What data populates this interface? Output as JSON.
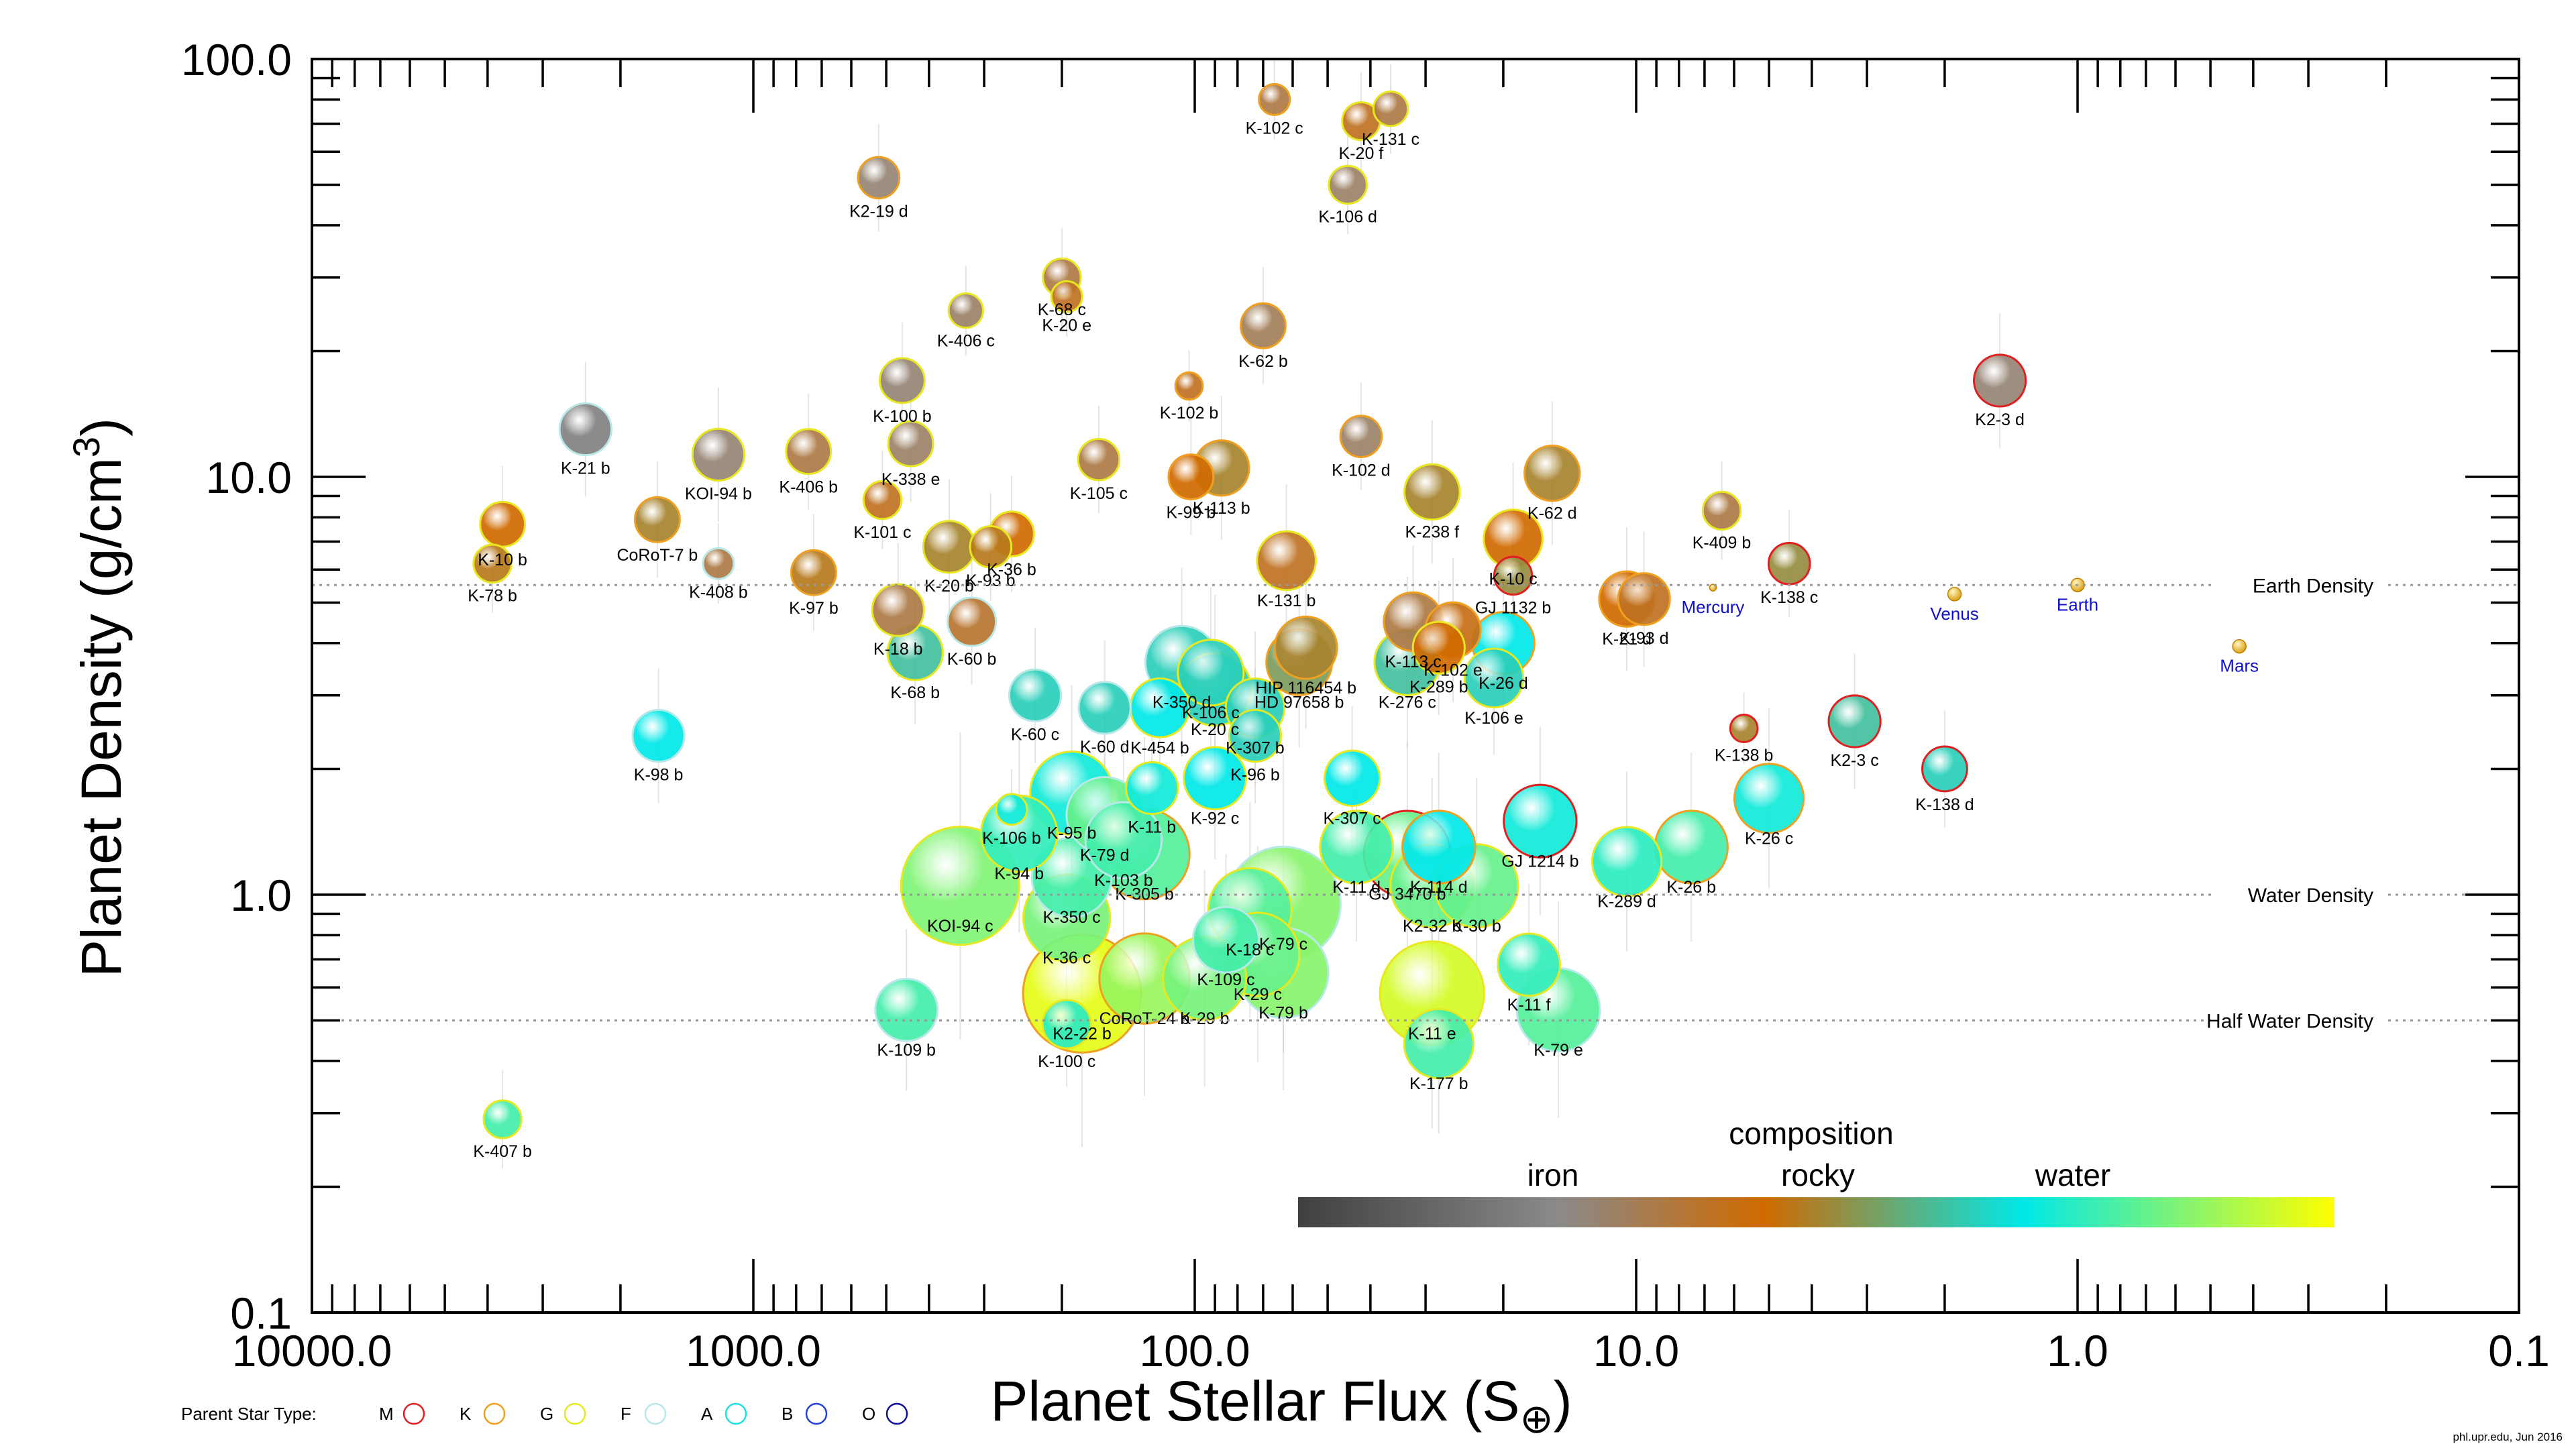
{
  "chart_data": {
    "type": "scatter",
    "xlabel": "Planet Stellar Flux (S",
    "xlabel_sub": "⊕",
    "xlabel_close": ")",
    "ylabel": "Planet Density (g/cm",
    "ylabel_sup": "3",
    "ylabel_close": ")",
    "x_scale": "log",
    "x_reversed": true,
    "xlim": [
      10000,
      0.1
    ],
    "y_scale": "log",
    "ylim": [
      0.1,
      100
    ],
    "x_ticks": [
      {
        "value": 10000,
        "label": "10000.0"
      },
      {
        "value": 1000,
        "label": "1000.0"
      },
      {
        "value": 100,
        "label": "100.0"
      },
      {
        "value": 10,
        "label": "10.0"
      },
      {
        "value": 1,
        "label": "1.0"
      },
      {
        "value": 0.1,
        "label": "0.1"
      }
    ],
    "y_ticks": [
      {
        "value": 100,
        "label": "100.0"
      },
      {
        "value": 10,
        "label": "10.0"
      },
      {
        "value": 1,
        "label": "1.0"
      },
      {
        "value": 0.1,
        "label": "0.1"
      }
    ],
    "reference_lines": [
      {
        "label": "Earth Density",
        "y": 5.51
      },
      {
        "label": "Water Density",
        "y": 1.0
      },
      {
        "label": "Half Water Density",
        "y": 0.5
      }
    ],
    "colorbar": {
      "title": "composition",
      "labels": [
        "iron",
        "rocky",
        "water"
      ],
      "colors": [
        "#404040",
        "#8a8a8a",
        "#d06a00",
        "#00e8e8",
        "#ffff00"
      ]
    },
    "legend": {
      "title": "Parent Star Type:",
      "placement": "bottom-left",
      "items": [
        {
          "label": "M",
          "color": "#e02020"
        },
        {
          "label": "K",
          "color": "#f0a020"
        },
        {
          "label": "G",
          "color": "#e8e820"
        },
        {
          "label": "F",
          "color": "#b8e8e8"
        },
        {
          "label": "A",
          "color": "#20e0e0"
        },
        {
          "label": "B",
          "color": "#2040e0"
        },
        {
          "label": "O",
          "color": "#1010a0"
        }
      ]
    },
    "solar_system": [
      {
        "name": "Mercury",
        "flux": 6.7,
        "density": 5.43
      },
      {
        "name": "Venus",
        "flux": 1.9,
        "density": 5.24
      },
      {
        "name": "Earth",
        "flux": 1.0,
        "density": 5.51
      },
      {
        "name": "Mars",
        "flux": 0.43,
        "density": 3.93
      }
    ],
    "planets": [
      {
        "name": "K-102 c",
        "flux": 66,
        "density": 80,
        "size": 0.25,
        "comp": 0.35,
        "star": "K"
      },
      {
        "name": "K-131 c",
        "flux": 36,
        "density": 76,
        "size": 0.3,
        "comp": 0.35,
        "star": "G"
      },
      {
        "name": "K-20 f",
        "flux": 42,
        "density": 71,
        "size": 0.35,
        "comp": 0.4,
        "star": "G"
      },
      {
        "name": "K2-19 d",
        "flux": 520,
        "density": 52,
        "size": 0.4,
        "comp": 0.28,
        "star": "K"
      },
      {
        "name": "K-106 d",
        "flux": 45,
        "density": 50,
        "size": 0.35,
        "comp": 0.3,
        "star": "G"
      },
      {
        "name": "K-68 c",
        "flux": 200,
        "density": 30,
        "size": 0.35,
        "comp": 0.35,
        "star": "G"
      },
      {
        "name": "K-20 e",
        "flux": 195,
        "density": 27,
        "size": 0.25,
        "comp": 0.4,
        "star": "G"
      },
      {
        "name": "K-406 c",
        "flux": 330,
        "density": 25,
        "size": 0.3,
        "comp": 0.3,
        "star": "G"
      },
      {
        "name": "K-62 b",
        "flux": 70,
        "density": 23,
        "size": 0.45,
        "comp": 0.32,
        "star": "K"
      },
      {
        "name": "K-100 b",
        "flux": 460,
        "density": 17,
        "size": 0.45,
        "comp": 0.28,
        "star": "G"
      },
      {
        "name": "K-102 b",
        "flux": 103,
        "density": 16.5,
        "size": 0.2,
        "comp": 0.4,
        "star": "K"
      },
      {
        "name": "K2-3 d",
        "flux": 1.5,
        "density": 17,
        "size": 0.55,
        "comp": 0.28,
        "star": "M"
      },
      {
        "name": "K-21 b",
        "flux": 2400,
        "density": 13,
        "size": 0.55,
        "comp": 0.22,
        "star": "F"
      },
      {
        "name": "K-102 d",
        "flux": 42,
        "density": 12.5,
        "size": 0.4,
        "comp": 0.3,
        "star": "K"
      },
      {
        "name": "K-338 e",
        "flux": 440,
        "density": 12,
        "size": 0.45,
        "comp": 0.3,
        "star": "G"
      },
      {
        "name": "KOI-94 b",
        "flux": 1200,
        "density": 11.3,
        "size": 0.55,
        "comp": 0.28,
        "star": "G"
      },
      {
        "name": "K-406 b",
        "flux": 750,
        "density": 11.5,
        "size": 0.45,
        "comp": 0.35,
        "star": "G"
      },
      {
        "name": "K-105 c",
        "flux": 165,
        "density": 11,
        "size": 0.4,
        "comp": 0.35,
        "star": "G"
      },
      {
        "name": "K-113 b",
        "flux": 87,
        "density": 10.5,
        "size": 0.6,
        "comp": 0.5,
        "star": "K"
      },
      {
        "name": "K-99 b",
        "flux": 102,
        "density": 10,
        "size": 0.45,
        "comp": 0.45,
        "star": "K"
      },
      {
        "name": "K-62 d",
        "flux": 15.5,
        "density": 10.2,
        "size": 0.6,
        "comp": 0.5,
        "star": "K"
      },
      {
        "name": "K-238 f",
        "flux": 29,
        "density": 9.2,
        "size": 0.6,
        "comp": 0.5,
        "star": "G"
      },
      {
        "name": "K-409 b",
        "flux": 6.4,
        "density": 8.3,
        "size": 0.35,
        "comp": 0.35,
        "star": "G"
      },
      {
        "name": "K-101 c",
        "flux": 510,
        "density": 8.8,
        "size": 0.35,
        "comp": 0.4,
        "star": "G"
      },
      {
        "name": "K-10 b",
        "flux": 3700,
        "density": 7.7,
        "size": 0.45,
        "comp": 0.45,
        "star": "G"
      },
      {
        "name": "CoRoT-7 b",
        "flux": 1650,
        "density": 7.9,
        "size": 0.45,
        "comp": 0.5,
        "star": "K"
      },
      {
        "name": "K-36 b",
        "flux": 260,
        "density": 7.3,
        "size": 0.45,
        "comp": 0.45,
        "star": "G"
      },
      {
        "name": "K-20 b",
        "flux": 360,
        "density": 6.8,
        "size": 0.55,
        "comp": 0.5,
        "star": "G"
      },
      {
        "name": "K-93 b",
        "flux": 290,
        "density": 6.8,
        "size": 0.4,
        "comp": 0.48,
        "star": "G"
      },
      {
        "name": "K-10 c",
        "flux": 19,
        "density": 7.1,
        "size": 0.65,
        "comp": 0.45,
        "star": "G"
      },
      {
        "name": "K-131 b",
        "flux": 62,
        "density": 6.3,
        "size": 0.65,
        "comp": 0.4,
        "star": "G"
      },
      {
        "name": "K-78 b",
        "flux": 3900,
        "density": 6.2,
        "size": 0.35,
        "comp": 0.48,
        "star": "G"
      },
      {
        "name": "K-408 b",
        "flux": 1200,
        "density": 6.2,
        "size": 0.25,
        "comp": 0.35,
        "star": "F"
      },
      {
        "name": "K-97 b",
        "flux": 730,
        "density": 5.9,
        "size": 0.45,
        "comp": 0.48,
        "star": "K"
      },
      {
        "name": "K-138 c",
        "flux": 4.5,
        "density": 6.2,
        "size": 0.4,
        "comp": 0.52,
        "star": "M"
      },
      {
        "name": "GJ 1132 b",
        "flux": 19,
        "density": 5.8,
        "size": 0.35,
        "comp": 0.52,
        "star": "M"
      },
      {
        "name": "K-21 d",
        "flux": 10.5,
        "density": 5.1,
        "size": 0.6,
        "comp": 0.45,
        "star": "K"
      },
      {
        "name": "K-93 d",
        "flux": 9.6,
        "density": 5.1,
        "size": 0.55,
        "comp": 0.4,
        "star": "K"
      },
      {
        "name": "K-18 b",
        "flux": 470,
        "density": 4.8,
        "size": 0.55,
        "comp": 0.35,
        "star": "G"
      },
      {
        "name": "K-60 b",
        "flux": 320,
        "density": 4.5,
        "size": 0.5,
        "comp": 0.38,
        "star": "F"
      },
      {
        "name": "K-113 c",
        "flux": 32,
        "density": 4.5,
        "size": 0.65,
        "comp": 0.35,
        "star": "K"
      },
      {
        "name": "K-102 e",
        "flux": 26,
        "density": 4.3,
        "size": 0.6,
        "comp": 0.42,
        "star": "K"
      },
      {
        "name": "K-289 b",
        "flux": 28,
        "density": 3.9,
        "size": 0.55,
        "comp": 0.45,
        "star": "G"
      },
      {
        "name": "K-68 b",
        "flux": 430,
        "density": 3.8,
        "size": 0.6,
        "comp": 0.62,
        "star": "G"
      },
      {
        "name": "K-276 c",
        "flux": 33,
        "density": 3.6,
        "size": 0.75,
        "comp": 0.62,
        "star": "G"
      },
      {
        "name": "K-106 e",
        "flux": 21,
        "density": 3.3,
        "size": 0.65,
        "comp": 0.65,
        "star": "G"
      },
      {
        "name": "K-26 d",
        "flux": 20,
        "density": 4,
        "size": 0.7,
        "comp": 0.7,
        "star": "K"
      },
      {
        "name": "HIP 116454 b",
        "flux": 56,
        "density": 3.9,
        "size": 0.7,
        "comp": 0.5,
        "star": "K"
      },
      {
        "name": "HD 97658 b",
        "flux": 58,
        "density": 3.6,
        "size": 0.75,
        "comp": 0.55,
        "star": "K"
      },
      {
        "name": "K-350 d",
        "flux": 107,
        "density": 3.6,
        "size": 0.85,
        "comp": 0.65,
        "star": "F"
      },
      {
        "name": "K-106 c",
        "flux": 92,
        "density": 3.4,
        "size": 0.75,
        "comp": 0.65,
        "star": "G"
      },
      {
        "name": "K-20 c",
        "flux": 90,
        "density": 3.1,
        "size": 0.85,
        "comp": 0.65,
        "star": "G"
      },
      {
        "name": "K-60 c",
        "flux": 230,
        "density": 3.0,
        "size": 0.55,
        "comp": 0.65,
        "star": "F"
      },
      {
        "name": "K-60 d",
        "flux": 160,
        "density": 2.8,
        "size": 0.55,
        "comp": 0.65,
        "star": "F"
      },
      {
        "name": "K-454 b",
        "flux": 120,
        "density": 2.8,
        "size": 0.65,
        "comp": 0.7,
        "star": "G"
      },
      {
        "name": "K-307 b",
        "flux": 73,
        "density": 2.8,
        "size": 0.65,
        "comp": 0.65,
        "star": "G"
      },
      {
        "name": "K-96 b",
        "flux": 73,
        "density": 2.4,
        "size": 0.55,
        "comp": 0.65,
        "star": "G"
      },
      {
        "name": "K-98 b",
        "flux": 1640,
        "density": 2.4,
        "size": 0.55,
        "comp": 0.7,
        "star": "F"
      },
      {
        "name": "K-138 b",
        "flux": 5.7,
        "density": 2.5,
        "size": 0.2,
        "comp": 0.5,
        "star": "M"
      },
      {
        "name": "K2-3 c",
        "flux": 3.2,
        "density": 2.6,
        "size": 0.55,
        "comp": 0.62,
        "star": "M"
      },
      {
        "name": "K-138 d",
        "flux": 2.0,
        "density": 2.0,
        "size": 0.45,
        "comp": 0.65,
        "star": "M"
      },
      {
        "name": "K-92 c",
        "flux": 90,
        "density": 1.9,
        "size": 0.7,
        "comp": 0.7,
        "star": "G"
      },
      {
        "name": "K-307 c",
        "flux": 44,
        "density": 1.9,
        "size": 0.6,
        "comp": 0.7,
        "star": "G"
      },
      {
        "name": "K-11 b",
        "flux": 125,
        "density": 1.8,
        "size": 0.55,
        "comp": 0.72,
        "star": "G"
      },
      {
        "name": "K-95 b",
        "flux": 190,
        "density": 1.75,
        "size": 1.0,
        "comp": 0.72,
        "star": "G"
      },
      {
        "name": "K-26 c",
        "flux": 5.0,
        "density": 1.7,
        "size": 0.8,
        "comp": 0.72,
        "star": "K"
      },
      {
        "name": "K-106 b",
        "flux": 260,
        "density": 1.6,
        "size": 0.25,
        "comp": 0.72,
        "star": "G"
      },
      {
        "name": "K-79 d",
        "flux": 160,
        "density": 1.55,
        "size": 0.9,
        "comp": 0.82,
        "star": "F"
      },
      {
        "name": "GJ 1214 b",
        "flux": 16.5,
        "density": 1.5,
        "size": 0.85,
        "comp": 0.72,
        "star": "M"
      },
      {
        "name": "K-94 b",
        "flux": 250,
        "density": 1.4,
        "size": 0.9,
        "comp": 0.76,
        "star": "G"
      },
      {
        "name": "K-103 b",
        "flux": 145,
        "density": 1.35,
        "size": 0.9,
        "comp": 0.78,
        "star": "F"
      },
      {
        "name": "K-11 d",
        "flux": 43,
        "density": 1.3,
        "size": 0.85,
        "comp": 0.78,
        "star": "G"
      },
      {
        "name": "K-26 b",
        "flux": 7.5,
        "density": 1.3,
        "size": 0.85,
        "comp": 0.78,
        "star": "K"
      },
      {
        "name": "K-305 b",
        "flux": 130,
        "density": 1.25,
        "size": 1.1,
        "comp": 0.8,
        "star": "K"
      },
      {
        "name": "K-114 d",
        "flux": 28,
        "density": 1.3,
        "size": 0.85,
        "comp": 0.7,
        "star": "K"
      },
      {
        "name": "GJ 3470 b",
        "flux": 33,
        "density": 1.25,
        "size": 1.05,
        "comp": 0.82,
        "star": "M"
      },
      {
        "name": "K-289 d",
        "flux": 10.5,
        "density": 1.2,
        "size": 0.8,
        "comp": 0.75,
        "star": "G"
      },
      {
        "name": "K-350 c",
        "flux": 190,
        "density": 1.1,
        "size": 0.95,
        "comp": 0.78,
        "star": "F"
      },
      {
        "name": "KOI-94 c",
        "flux": 340,
        "density": 1.05,
        "size": 1.5,
        "comp": 0.85,
        "star": "G"
      },
      {
        "name": "K2-32 b",
        "flux": 29,
        "density": 1.05,
        "size": 1.0,
        "comp": 0.82,
        "star": "G"
      },
      {
        "name": "K-30 b",
        "flux": 23,
        "density": 1.05,
        "size": 1.0,
        "comp": 0.82,
        "star": "G"
      },
      {
        "name": "K-79 c",
        "flux": 63,
        "density": 0.95,
        "size": 1.45,
        "comp": 0.86,
        "star": "F"
      },
      {
        "name": "K-18 c",
        "flux": 75,
        "density": 0.92,
        "size": 1.0,
        "comp": 0.8,
        "star": "G"
      },
      {
        "name": "K-36 c",
        "flux": 195,
        "density": 0.88,
        "size": 1.05,
        "comp": 0.84,
        "star": "G"
      },
      {
        "name": "K-109 c",
        "flux": 85,
        "density": 0.78,
        "size": 0.75,
        "comp": 0.78,
        "star": "F"
      },
      {
        "name": "K-29 c",
        "flux": 72,
        "density": 0.72,
        "size": 1.0,
        "comp": 0.82,
        "star": "G"
      },
      {
        "name": "K-11 f",
        "flux": 17.5,
        "density": 0.68,
        "size": 0.7,
        "comp": 0.76,
        "star": "G"
      },
      {
        "name": "K-79 b",
        "flux": 63,
        "density": 0.65,
        "size": 1.1,
        "comp": 0.86,
        "star": "F"
      },
      {
        "name": "CoRoT-24 b",
        "flux": 130,
        "density": 0.63,
        "size": 1.1,
        "comp": 0.88,
        "star": "K"
      },
      {
        "name": "K-29 b",
        "flux": 95,
        "density": 0.63,
        "size": 1.0,
        "comp": 0.84,
        "star": "G"
      },
      {
        "name": "K-11 e",
        "flux": 29,
        "density": 0.58,
        "size": 1.3,
        "comp": 0.95,
        "star": "G"
      },
      {
        "name": "K2-22 b",
        "flux": 180,
        "density": 0.58,
        "size": 1.5,
        "comp": 0.97,
        "star": "K"
      },
      {
        "name": "K-109 b",
        "flux": 450,
        "density": 0.53,
        "size": 0.7,
        "comp": 0.78,
        "star": "F"
      },
      {
        "name": "K-79 e",
        "flux": 15,
        "density": 0.53,
        "size": 1.0,
        "comp": 0.8,
        "star": "F"
      },
      {
        "name": "K-100 c",
        "flux": 195,
        "density": 0.49,
        "size": 0.5,
        "comp": 0.75,
        "star": "G"
      },
      {
        "name": "K-177 b",
        "flux": 28,
        "density": 0.44,
        "size": 0.8,
        "comp": 0.78,
        "star": "G"
      },
      {
        "name": "K-407 b",
        "flux": 3700,
        "density": 0.29,
        "size": 0.35,
        "comp": 0.78,
        "star": "G"
      }
    ]
  },
  "credit": "phl.upr.edu, Jun 2016"
}
